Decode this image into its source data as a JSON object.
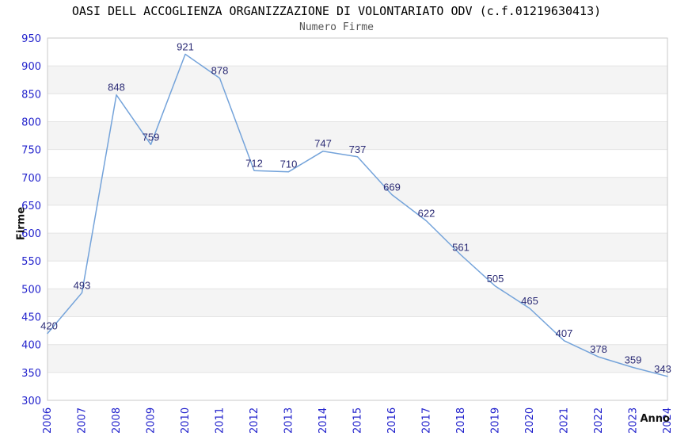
{
  "chart_data": {
    "type": "line",
    "title": "OASI DELL ACCOGLIENZA ORGANIZZAZIONE DI VOLONTARIATO ODV (c.f.01219630413)",
    "subtitle": "Numero Firme",
    "xlabel": "Anno",
    "ylabel": "Firme",
    "categories": [
      "2006",
      "2007",
      "2008",
      "2009",
      "2010",
      "2011",
      "2012",
      "2013",
      "2014",
      "2015",
      "2016",
      "2017",
      "2018",
      "2019",
      "2020",
      "2021",
      "2022",
      "2023",
      "2024"
    ],
    "values": [
      420,
      493,
      848,
      759,
      921,
      878,
      712,
      710,
      747,
      737,
      669,
      622,
      561,
      505,
      465,
      407,
      378,
      359,
      343
    ],
    "ylim": [
      300,
      950
    ],
    "ytick_step": 50,
    "grid": "horizontal-bands-alternating",
    "legend": "none",
    "point_labels_visible": true,
    "colors": {
      "line": "#74a3da",
      "tick_labels": "#2222cc",
      "point_labels": "#2b2b75",
      "band_fill": "#f4f4f4",
      "gridline": "#e4e4e4",
      "plot_border": "#c9c9c9",
      "title": "#000000",
      "subtitle": "#555555",
      "background": "#ffffff"
    }
  }
}
